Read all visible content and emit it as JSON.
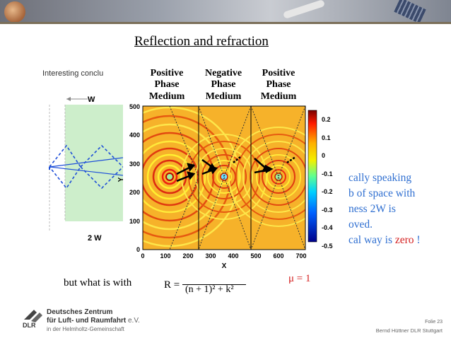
{
  "slide": {
    "title": "Reflection and refraction",
    "left_caption": "Interesting conclu",
    "left_w_label": "W",
    "left_2w_label": "2 W",
    "right_lines": [
      "cally speaking",
      "b of space with",
      "ness 2W is",
      "oved."
    ],
    "right_last_prefix": "cal way is ",
    "right_last_zero": "zero",
    "right_last_suffix": " !",
    "formula_prefix": "but what is with",
    "formula_r": "R =",
    "formula_den": "(n + 1)² + k²",
    "formula_mu": "μ = 1"
  },
  "figure": {
    "headers": [
      {
        "line1": "Positive",
        "line2": "Phase",
        "line3": "Medium"
      },
      {
        "line1": "Negative",
        "line2": "Phase",
        "line3": "Medium"
      },
      {
        "line1": "Positive",
        "line2": "Phase",
        "line3": "Medium"
      }
    ],
    "y_label": "Y",
    "x_label": "X",
    "y_ticks": [
      "0",
      "100",
      "200",
      "300",
      "400",
      "500"
    ],
    "x_ticks": [
      "0",
      "100",
      "200",
      "300",
      "400",
      "500",
      "600",
      "700"
    ],
    "colorbar_ticks": [
      "0.2",
      "0.1",
      "0",
      "-0.1",
      "-0.2",
      "-0.3",
      "-0.4",
      "-0.5"
    ]
  },
  "footer": {
    "org_line1": "Deutsches Zentrum",
    "org_line2": "für Luft- und Raumfahrt",
    "org_ev": " e.V.",
    "org_line3": "in der Helmholtz-Gemeinschaft",
    "slide_no": "Folie 23",
    "author": "Bernd Hüttner DLR Stuttgart"
  }
}
